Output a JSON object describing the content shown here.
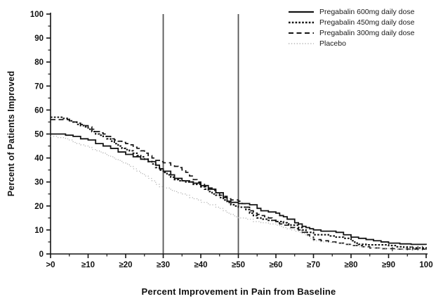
{
  "chart_data": {
    "type": "line",
    "subtype": "step-cumulative-responder-curves",
    "title": "",
    "xlabel": "Percent Improvement in Pain from Baseline",
    "ylabel": "Percent of Patients Improved",
    "xlim": [
      0,
      100
    ],
    "ylim": [
      0,
      100
    ],
    "grid": false,
    "legend_position": "top-right",
    "x_ticks": [
      {
        "value": 0,
        "label": ">0"
      },
      {
        "value": 10,
        "label": "≥10"
      },
      {
        "value": 20,
        "label": "≥20"
      },
      {
        "value": 30,
        "label": "≥30"
      },
      {
        "value": 40,
        "label": "≥40"
      },
      {
        "value": 50,
        "label": "≥50"
      },
      {
        "value": 60,
        "label": "≥60"
      },
      {
        "value": 70,
        "label": "≥70"
      },
      {
        "value": 80,
        "label": "≥80"
      },
      {
        "value": 90,
        "label": "≥90"
      },
      {
        "value": 100,
        "label": "100"
      }
    ],
    "y_ticks": [
      0,
      10,
      20,
      30,
      40,
      50,
      60,
      70,
      80,
      90,
      100
    ],
    "minor_tick_step": 5,
    "reference_lines_x": [
      30,
      50
    ],
    "colors": {
      "drug": "#141414",
      "placebo": "#b4b4b4",
      "reference_line": "#555555",
      "axis": "#141414"
    },
    "series": [
      {
        "name": "Pregabalin 600mg daily dose",
        "style": "solid",
        "color": "#141414",
        "points": [
          [
            0,
            50
          ],
          [
            4,
            49.5
          ],
          [
            6,
            49
          ],
          [
            8,
            48
          ],
          [
            10,
            47.5
          ],
          [
            12,
            46
          ],
          [
            14,
            45
          ],
          [
            16,
            44
          ],
          [
            18,
            42.5
          ],
          [
            20,
            41.5
          ],
          [
            22,
            40.5
          ],
          [
            24,
            39.5
          ],
          [
            26,
            38.5
          ],
          [
            28,
            37
          ],
          [
            29,
            35.5
          ],
          [
            30,
            34.5
          ],
          [
            32,
            33
          ],
          [
            33,
            31.5
          ],
          [
            35,
            30.5
          ],
          [
            37,
            30
          ],
          [
            38,
            29.5
          ],
          [
            40,
            28.5
          ],
          [
            42,
            27
          ],
          [
            44,
            25.5
          ],
          [
            46,
            23.5
          ],
          [
            47,
            22
          ],
          [
            48,
            21.5
          ],
          [
            50,
            21
          ],
          [
            53,
            20.5
          ],
          [
            55,
            19
          ],
          [
            56,
            18
          ],
          [
            58,
            17.5
          ],
          [
            60,
            17
          ],
          [
            61,
            16
          ],
          [
            62,
            15.5
          ],
          [
            63,
            14.5
          ],
          [
            65,
            13
          ],
          [
            66,
            12.5
          ],
          [
            67,
            11.5
          ],
          [
            68,
            11
          ],
          [
            69,
            10.5
          ],
          [
            70,
            10
          ],
          [
            72,
            9.5
          ],
          [
            76,
            9
          ],
          [
            78,
            8
          ],
          [
            80,
            7
          ],
          [
            82,
            6.5
          ],
          [
            84,
            6
          ],
          [
            86,
            5.5
          ],
          [
            88,
            5
          ],
          [
            90,
            4.5
          ],
          [
            93,
            4.2
          ],
          [
            96,
            4
          ],
          [
            100,
            3.8
          ]
        ]
      },
      {
        "name": "Pregabalin 450mg daily dose",
        "style": "dense-dotted",
        "color": "#141414",
        "points": [
          [
            0,
            57
          ],
          [
            3,
            56.5
          ],
          [
            5,
            55.5
          ],
          [
            6,
            55
          ],
          [
            7,
            54
          ],
          [
            8,
            53.5
          ],
          [
            9,
            53
          ],
          [
            10,
            52
          ],
          [
            11,
            51
          ],
          [
            12,
            50
          ],
          [
            13,
            49.5
          ],
          [
            14,
            49
          ],
          [
            15,
            48
          ],
          [
            16,
            47
          ],
          [
            17,
            46
          ],
          [
            18,
            45
          ],
          [
            19,
            44
          ],
          [
            20,
            43.5
          ],
          [
            21,
            43
          ],
          [
            22,
            42
          ],
          [
            23,
            41
          ],
          [
            24,
            40.5
          ],
          [
            25,
            39.5
          ],
          [
            26,
            38.5
          ],
          [
            27,
            37.5
          ],
          [
            28,
            36
          ],
          [
            29,
            35
          ],
          [
            30,
            34
          ],
          [
            31,
            33
          ],
          [
            32,
            32
          ],
          [
            33,
            31
          ],
          [
            34,
            30.5
          ],
          [
            36,
            30
          ],
          [
            38,
            29
          ],
          [
            40,
            28
          ],
          [
            41,
            27
          ],
          [
            42,
            26
          ],
          [
            43,
            25
          ],
          [
            44,
            24.5
          ],
          [
            45,
            23.5
          ],
          [
            46,
            22.5
          ],
          [
            47,
            21.5
          ],
          [
            48,
            20.5
          ],
          [
            49,
            20
          ],
          [
            50,
            19.5
          ],
          [
            52,
            18.5
          ],
          [
            53,
            17
          ],
          [
            54,
            16
          ],
          [
            55,
            15
          ],
          [
            56,
            14.5
          ],
          [
            58,
            14
          ],
          [
            60,
            13.5
          ],
          [
            62,
            13
          ],
          [
            63,
            12.5
          ],
          [
            64,
            12
          ],
          [
            66,
            11
          ],
          [
            67,
            10
          ],
          [
            68,
            9
          ],
          [
            70,
            8
          ],
          [
            74,
            7.5
          ],
          [
            76,
            7
          ],
          [
            78,
            6.5
          ],
          [
            80,
            5.5
          ],
          [
            81,
            4.5
          ],
          [
            82,
            4
          ],
          [
            84,
            3.8
          ],
          [
            90,
            3.5
          ],
          [
            92,
            3
          ],
          [
            94,
            2.8
          ],
          [
            96,
            2.5
          ],
          [
            100,
            2.3
          ]
        ]
      },
      {
        "name": "Pregabalin 300mg daily dose",
        "style": "dashed",
        "color": "#141414",
        "points": [
          [
            0,
            56
          ],
          [
            5,
            55.5
          ],
          [
            6,
            55
          ],
          [
            7,
            54.5
          ],
          [
            8,
            54
          ],
          [
            9,
            53.5
          ],
          [
            10,
            53
          ],
          [
            11,
            52
          ],
          [
            12,
            51
          ],
          [
            13,
            50.5
          ],
          [
            14,
            50
          ],
          [
            15,
            49
          ],
          [
            16,
            48
          ],
          [
            17,
            47.5
          ],
          [
            18,
            47
          ],
          [
            19,
            46.5
          ],
          [
            20,
            46
          ],
          [
            21,
            45.5
          ],
          [
            22,
            44.5
          ],
          [
            23,
            44
          ],
          [
            24,
            43
          ],
          [
            25,
            42
          ],
          [
            26,
            41
          ],
          [
            27,
            40
          ],
          [
            28,
            39
          ],
          [
            29,
            38.5
          ],
          [
            30,
            38
          ],
          [
            32,
            37
          ],
          [
            33,
            36.5
          ],
          [
            34,
            36
          ],
          [
            35,
            35
          ],
          [
            36,
            34
          ],
          [
            37,
            32.5
          ],
          [
            38,
            31
          ],
          [
            39,
            30
          ],
          [
            40,
            29
          ],
          [
            41,
            28
          ],
          [
            42,
            27.5
          ],
          [
            43,
            26.5
          ],
          [
            44,
            25.5
          ],
          [
            45,
            24.5
          ],
          [
            46,
            24
          ],
          [
            47,
            23
          ],
          [
            48,
            22.5
          ],
          [
            50,
            22
          ],
          [
            51,
            21
          ],
          [
            52,
            19.5
          ],
          [
            53,
            18
          ],
          [
            54,
            17
          ],
          [
            55,
            16.5
          ],
          [
            56,
            16
          ],
          [
            57,
            15.5
          ],
          [
            58,
            15
          ],
          [
            59,
            14
          ],
          [
            60,
            13
          ],
          [
            61,
            12.5
          ],
          [
            62,
            12
          ],
          [
            64,
            11
          ],
          [
            65,
            10.5
          ],
          [
            66,
            10
          ],
          [
            67,
            9
          ],
          [
            68,
            8
          ],
          [
            69,
            7
          ],
          [
            70,
            6
          ],
          [
            72,
            5.5
          ],
          [
            74,
            5
          ],
          [
            76,
            4.5
          ],
          [
            78,
            4
          ],
          [
            80,
            3.5
          ],
          [
            83,
            3
          ],
          [
            85,
            2.5
          ],
          [
            88,
            2.2
          ],
          [
            92,
            2
          ],
          [
            100,
            1.8
          ]
        ]
      },
      {
        "name": "Placebo",
        "style": "fine-dotted",
        "color": "#b4b4b4",
        "points": [
          [
            0,
            49
          ],
          [
            2,
            48.5
          ],
          [
            4,
            48
          ],
          [
            5,
            47.5
          ],
          [
            6,
            46.5
          ],
          [
            7,
            46
          ],
          [
            8,
            45.5
          ],
          [
            9,
            45
          ],
          [
            10,
            44.5
          ],
          [
            11,
            43.5
          ],
          [
            12,
            43
          ],
          [
            13,
            42.5
          ],
          [
            14,
            42
          ],
          [
            15,
            41
          ],
          [
            16,
            40.5
          ],
          [
            17,
            39.5
          ],
          [
            18,
            39
          ],
          [
            19,
            38
          ],
          [
            20,
            37.5
          ],
          [
            21,
            36.5
          ],
          [
            22,
            35.5
          ],
          [
            23,
            34.5
          ],
          [
            24,
            33.5
          ],
          [
            25,
            32.5
          ],
          [
            26,
            31.5
          ],
          [
            27,
            30.5
          ],
          [
            28,
            29
          ],
          [
            29,
            28
          ],
          [
            30,
            27.5
          ],
          [
            32,
            26.5
          ],
          [
            33,
            26
          ],
          [
            34,
            25.5
          ],
          [
            35,
            25
          ],
          [
            36,
            24.5
          ],
          [
            37,
            23.5
          ],
          [
            38,
            23
          ],
          [
            39,
            22.5
          ],
          [
            40,
            21.5
          ],
          [
            42,
            20.5
          ],
          [
            44,
            19.5
          ],
          [
            45,
            19
          ],
          [
            46,
            18
          ],
          [
            47,
            17
          ],
          [
            48,
            16.5
          ],
          [
            49,
            15.5
          ],
          [
            50,
            15
          ],
          [
            52,
            14.5
          ],
          [
            54,
            13.5
          ],
          [
            56,
            13
          ],
          [
            58,
            12.5
          ],
          [
            60,
            12
          ],
          [
            61,
            11.5
          ],
          [
            62,
            11
          ],
          [
            63,
            10.5
          ],
          [
            64,
            10
          ],
          [
            65,
            9.5
          ],
          [
            66,
            9
          ],
          [
            67,
            8.5
          ],
          [
            68,
            7.5
          ],
          [
            69,
            6.5
          ],
          [
            70,
            5.5
          ],
          [
            72,
            5
          ],
          [
            74,
            4.8
          ],
          [
            76,
            4.5
          ],
          [
            78,
            4
          ],
          [
            80,
            3.5
          ],
          [
            82,
            3
          ],
          [
            84,
            2.8
          ],
          [
            86,
            2.5
          ],
          [
            88,
            2.2
          ],
          [
            90,
            2
          ],
          [
            94,
            1.8
          ],
          [
            100,
            1.5
          ]
        ]
      }
    ],
    "censor_marks": [
      [
        91,
        2
      ],
      [
        95,
        2.4
      ],
      [
        96.4,
        2.4
      ],
      [
        97.8,
        2.4
      ],
      [
        99,
        2.4
      ]
    ]
  }
}
